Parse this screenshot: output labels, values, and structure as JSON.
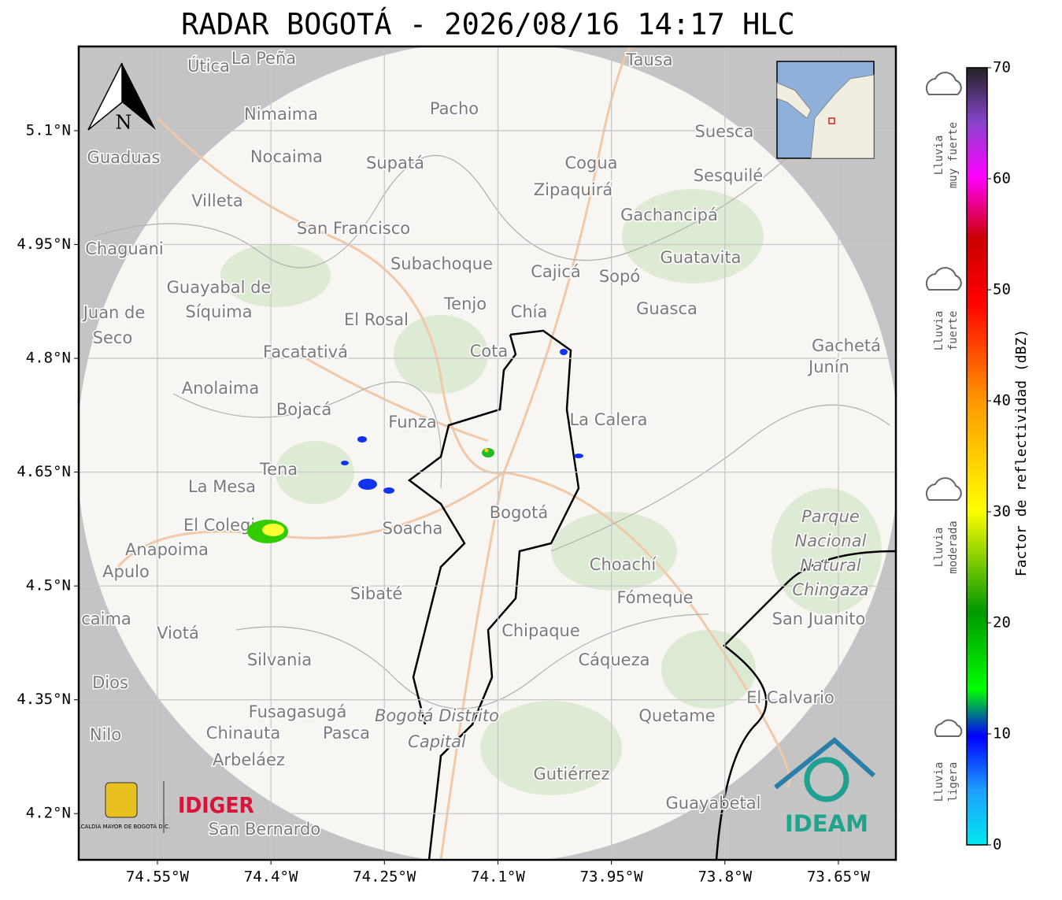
{
  "title": "RADAR BOGOTÁ - 2026/08/16 14:17 HLC",
  "map": {
    "lonlim": [
      -74.654,
      -73.574
    ],
    "latlim": [
      4.139,
      5.211
    ],
    "lonticks": [
      {
        "value": -74.55,
        "label": "74.55°W"
      },
      {
        "value": -74.4,
        "label": "74.4°W"
      },
      {
        "value": -74.25,
        "label": "74.25°W"
      },
      {
        "value": -74.1,
        "label": "74.1°W"
      },
      {
        "value": -73.95,
        "label": "73.95°W"
      },
      {
        "value": -73.8,
        "label": "73.8°W"
      },
      {
        "value": -73.65,
        "label": "73.65°W"
      }
    ],
    "latticks": [
      {
        "value": 5.1,
        "label": "5.1°N"
      },
      {
        "value": 4.95,
        "label": "4.95°N"
      },
      {
        "value": 4.8,
        "label": "4.8°N"
      },
      {
        "value": 4.65,
        "label": "4.65°N"
      },
      {
        "value": 4.5,
        "label": "4.5°N"
      },
      {
        "value": 4.35,
        "label": "4.35°N"
      },
      {
        "value": 4.2,
        "label": "4.2°N"
      }
    ],
    "north": "N",
    "places": [
      "Útica",
      "La Peña",
      "Tausa",
      "Pacho",
      "Nimaima",
      "Suesca",
      "Guaduas",
      "Nocaima",
      "Supatá",
      "Cogua",
      "Sesquilé",
      "Zipaquirá",
      "Villeta",
      "Gachancipá",
      "San Francisco",
      "Chaguani",
      "Guatavita",
      "Subachoque",
      "Cajicá",
      "Sopó",
      "Guayabal de",
      "Síquima",
      "Tenjo",
      "Juan de",
      "Chía",
      "Guasca",
      "El Rosal",
      "Seco",
      "Gachetá",
      "Facatativá",
      "Cota",
      "Junín",
      "Anolaima",
      "Bojacá",
      "Funza",
      "La Calera",
      "Tena",
      "La Mesa",
      "Bogotá",
      "El Colegio",
      "Soacha",
      "Anapoima",
      "Apulo",
      "Choachí",
      "Sibaté",
      "Fómeque",
      "San Juanito",
      "caima",
      "Viotá",
      "Chipaque",
      "Silvania",
      "Cáqueza",
      "Dios",
      "El Calvario",
      "Fusagasugá",
      "Quetame",
      "Nilo",
      "Chinauta",
      "Pasca",
      "Arbeláez",
      "Gutiérrez",
      "Guayabetal",
      "San Bernardo"
    ],
    "park": [
      "Parque",
      "Nacional",
      "Natural",
      "Chingaza"
    ],
    "district": [
      "Bogotá Distrito",
      "Capital"
    ]
  },
  "logos": {
    "alcaldia": "ALCALDÍA MAYOR DE BOGOTÁ D.C.",
    "idiger": "IDIGER",
    "ideam": "IDEAM"
  },
  "colorbar": {
    "label": "Factor de reflectividad (dBZ)",
    "lim": [
      0,
      70
    ],
    "ticks": [
      0,
      10,
      20,
      30,
      40,
      50,
      60,
      70
    ]
  },
  "rain_levels": [
    [
      "Lluvia",
      "muy fuerte"
    ],
    [
      "Lluvia",
      "fuerte"
    ],
    [
      "Lluvia",
      "moderada"
    ],
    [
      "Lluvia",
      "ligera"
    ]
  ]
}
